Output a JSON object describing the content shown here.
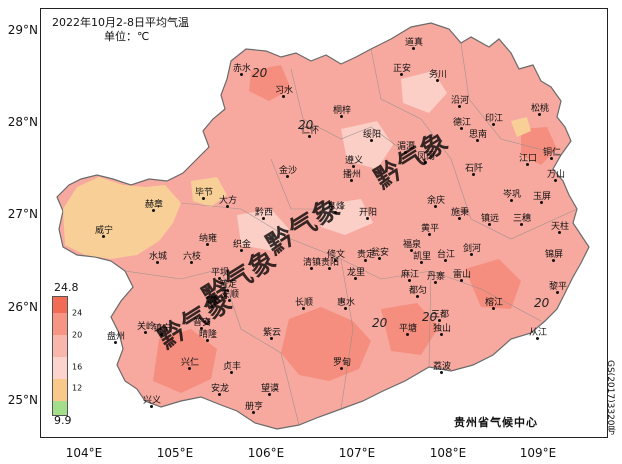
{
  "title": "2022年10月2-8日平均气温",
  "unit_label": "单位：℃",
  "credit": "贵州省气候中心",
  "approval_number": "GS(2017)3320号",
  "watermark_text": "黔气象",
  "lat_labels": [
    "29°N",
    "28°N",
    "27°N",
    "26°N",
    "25°N"
  ],
  "lon_labels": [
    "104°E",
    "105°E",
    "106°E",
    "107°E",
    "108°E",
    "109°E"
  ],
  "legend": {
    "max_label": "24.8",
    "min_label": "9.9",
    "ticks": [
      "24",
      "20",
      "16",
      "12"
    ],
    "colors": [
      "#f26b55",
      "#f79585",
      "#f9b6ad",
      "#fcd3cd",
      "#f8c98a",
      "#a3df8a"
    ]
  },
  "contour_labels": [
    "20",
    "20",
    "20",
    "20",
    "20"
  ],
  "places": [
    "赤水",
    "习水",
    "道真",
    "正安",
    "务川",
    "沿河",
    "桐梓",
    "绥阳",
    "凤冈",
    "德江",
    "印江",
    "松桃",
    "仁怀",
    "遵义",
    "湄潭",
    "思南",
    "江口",
    "铜仁",
    "金沙",
    "播州",
    "石阡",
    "万山",
    "毕节",
    "大方",
    "黔西",
    "息烽",
    "开阳",
    "余庆",
    "岑巩",
    "玉屏",
    "赫章",
    "威宁",
    "纳雍",
    "织金",
    "清镇",
    "修文",
    "瓮安",
    "施秉",
    "镇远",
    "三穗",
    "天柱",
    "水城",
    "六枝",
    "平坝",
    "贵阳",
    "贵定",
    "福泉",
    "黄平",
    "凯里",
    "台江",
    "剑河",
    "锦屏",
    "普定",
    "安顺",
    "长顺",
    "龙里",
    "麻江",
    "丹寨",
    "雷山",
    "榕江",
    "黎平",
    "盘州",
    "关岭",
    "镇宁",
    "紫云",
    "惠水",
    "都匀",
    "三都",
    "从江",
    "普安",
    "晴隆",
    "兴仁",
    "贞丰",
    "望谟",
    "罗甸",
    "平塘",
    "独山",
    "荔波",
    "兴义",
    "安龙",
    "册亨"
  ]
}
